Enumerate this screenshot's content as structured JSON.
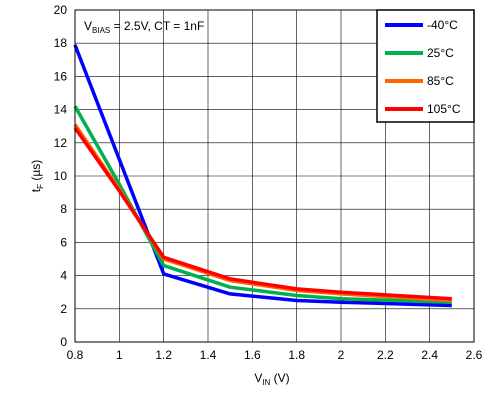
{
  "chart_data": {
    "type": "line",
    "annotation": {
      "v": "V",
      "sub": "BIAS",
      "rest": " = 2.5V, CT = 1nF"
    },
    "xlabel": {
      "main": "V",
      "sub": "IN",
      "unit": " (V)"
    },
    "ylabel": {
      "main": "t",
      "sub": "F",
      "unit": " (µs)"
    },
    "xlim": [
      0.8,
      2.6
    ],
    "ylim": [
      0,
      20
    ],
    "xticks": [
      "0.8",
      "1",
      "1.2",
      "1.4",
      "1.6",
      "1.8",
      "2",
      "2.2",
      "2.4",
      "2.6"
    ],
    "yticks": [
      "0",
      "2",
      "4",
      "6",
      "8",
      "10",
      "12",
      "14",
      "16",
      "18",
      "20"
    ],
    "grid": true,
    "legend_position": "top-right",
    "series": [
      {
        "name": "-40°C",
        "color": "#0000ff",
        "x": [
          0.8,
          1.0,
          1.2,
          1.5,
          1.8,
          2.0,
          2.5
        ],
        "y": [
          17.9,
          11.0,
          4.1,
          2.9,
          2.5,
          2.4,
          2.2
        ]
      },
      {
        "name": "25°C",
        "color": "#00b050",
        "x": [
          0.8,
          1.0,
          1.2,
          1.5,
          1.8,
          2.0,
          2.5
        ],
        "y": [
          14.2,
          9.5,
          4.6,
          3.3,
          2.8,
          2.6,
          2.4
        ]
      },
      {
        "name": "85°C",
        "color": "#ff6600",
        "x": [
          0.8,
          1.0,
          1.2,
          1.5,
          1.8,
          2.0,
          2.5
        ],
        "y": [
          13.1,
          9.2,
          5.0,
          3.7,
          3.1,
          2.9,
          2.5
        ]
      },
      {
        "name": "105°C",
        "color": "#ff0000",
        "x": [
          0.8,
          1.0,
          1.2,
          1.5,
          1.8,
          2.0,
          2.5
        ],
        "y": [
          12.9,
          9.1,
          5.1,
          3.8,
          3.2,
          3.0,
          2.6
        ]
      }
    ]
  }
}
